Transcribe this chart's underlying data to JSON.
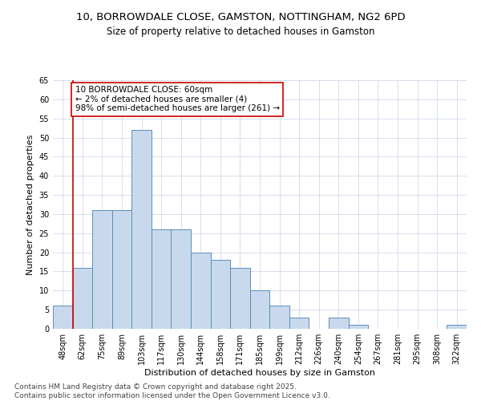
{
  "title_line1": "10, BORROWDALE CLOSE, GAMSTON, NOTTINGHAM, NG2 6PD",
  "title_line2": "Size of property relative to detached houses in Gamston",
  "xlabel": "Distribution of detached houses by size in Gamston",
  "ylabel": "Number of detached properties",
  "categories": [
    "48sqm",
    "62sqm",
    "75sqm",
    "89sqm",
    "103sqm",
    "117sqm",
    "130sqm",
    "144sqm",
    "158sqm",
    "171sqm",
    "185sqm",
    "199sqm",
    "212sqm",
    "226sqm",
    "240sqm",
    "254sqm",
    "267sqm",
    "281sqm",
    "295sqm",
    "308sqm",
    "322sqm"
  ],
  "values": [
    6,
    16,
    31,
    31,
    52,
    26,
    26,
    20,
    18,
    16,
    10,
    6,
    3,
    0,
    3,
    1,
    0,
    0,
    0,
    0,
    1
  ],
  "bar_color": "#c9d9ed",
  "bar_edge_color": "#5b8db8",
  "annotation_text": "10 BORROWDALE CLOSE: 60sqm\n← 2% of detached houses are smaller (4)\n98% of semi-detached houses are larger (261) →",
  "annotation_box_color": "#ffffff",
  "annotation_box_edge": "#cc0000",
  "annotation_text_color": "#000000",
  "vline_color": "#cc0000",
  "ylim": [
    0,
    65
  ],
  "yticks": [
    0,
    5,
    10,
    15,
    20,
    25,
    30,
    35,
    40,
    45,
    50,
    55,
    60,
    65
  ],
  "footer_line1": "Contains HM Land Registry data © Crown copyright and database right 2025.",
  "footer_line2": "Contains public sector information licensed under the Open Government Licence v3.0.",
  "bg_color": "#ffffff",
  "grid_color": "#d0d8e8",
  "title_fontsize": 9.5,
  "subtitle_fontsize": 8.5,
  "axis_label_fontsize": 8,
  "tick_fontsize": 7,
  "footer_fontsize": 6.5,
  "annotation_fontsize": 7.5
}
